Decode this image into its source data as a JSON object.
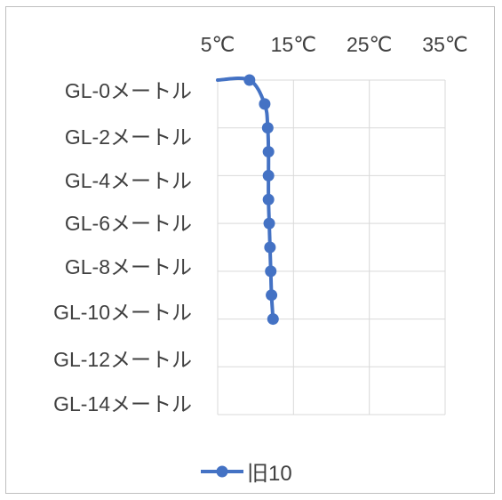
{
  "chart_data": {
    "type": "line",
    "x_axis": {
      "position": "top",
      "ticks": [
        5,
        15,
        25,
        35
      ],
      "tick_labels": [
        "5℃",
        "15℃",
        "25℃",
        "35℃"
      ],
      "range": [
        5,
        35
      ]
    },
    "y_axis": {
      "reversed": true,
      "tick_labels": [
        "GL-0メートル",
        "GL-2メートル",
        "GL-4メートル",
        "GL-6メートル",
        "GL-8メートル",
        "GL-10メートル",
        "GL-12メートル",
        "GL-14メートル"
      ],
      "range": [
        0,
        14
      ]
    },
    "series": [
      {
        "name": "旧10",
        "color": "#4472c4",
        "x": [
          5.0,
          9.2,
          11.2,
          11.6,
          11.7,
          11.7,
          11.7,
          11.8,
          11.9,
          12.0,
          12.1,
          12.3
        ],
        "y": [
          0,
          0,
          1,
          2,
          3,
          4,
          5,
          6,
          7,
          8,
          9,
          10
        ],
        "markers": [
          false,
          true,
          true,
          true,
          true,
          true,
          true,
          true,
          true,
          true,
          true,
          true
        ]
      }
    ],
    "grid": true,
    "legend": "bottom"
  }
}
